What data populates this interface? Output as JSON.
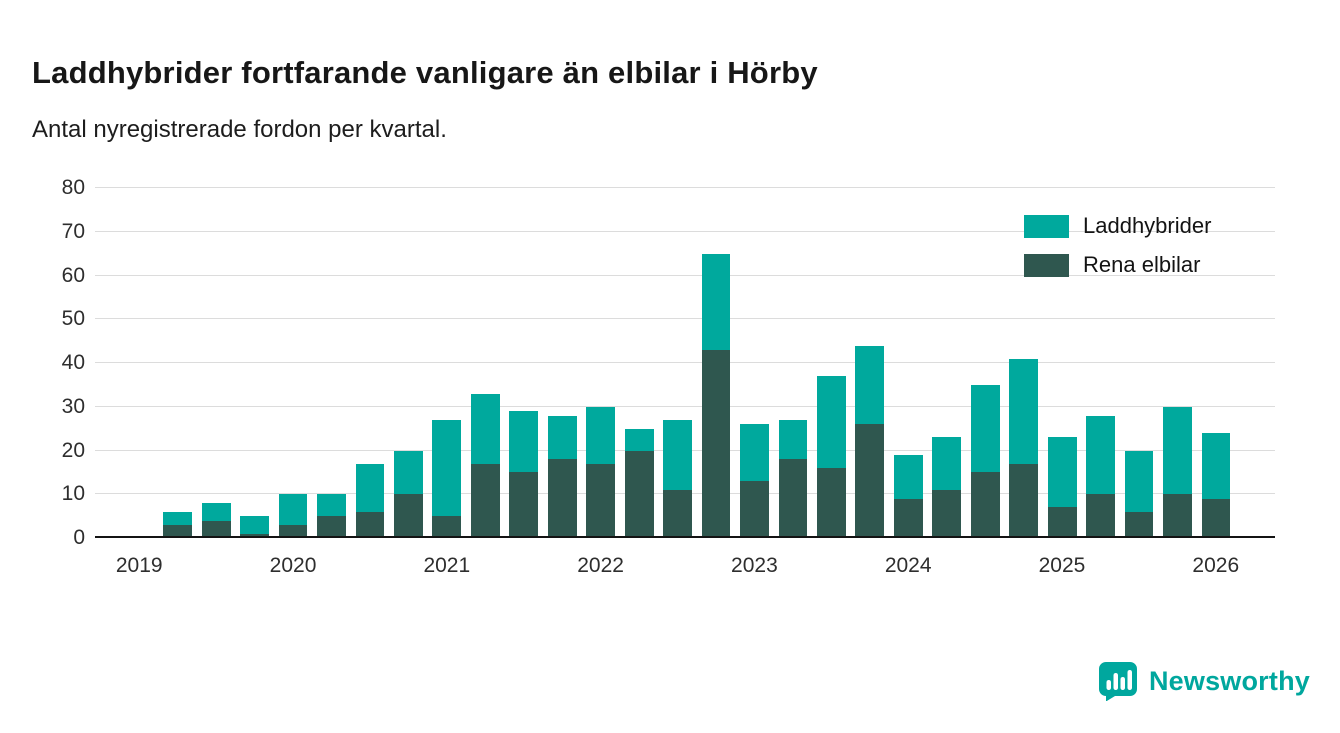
{
  "header": {
    "title": "Laddhybrider fortfarande vanligare än elbilar i Hörby",
    "subtitle": "Antal nyregistrerade fordon per kvartal."
  },
  "chart_data": {
    "type": "bar",
    "stacked": true,
    "title": "Laddhybrider fortfarande vanligare än elbilar i Hörby",
    "subtitle": "Antal nyregistrerade fordon per kvartal.",
    "xlabel": "",
    "ylabel": "",
    "ylim": [
      0,
      80
    ],
    "yticks": [
      0,
      10,
      20,
      30,
      40,
      50,
      60,
      70,
      80
    ],
    "grid": true,
    "legend_position": "top-right",
    "x": [
      "2019 Q1",
      "2019 Q2",
      "2019 Q3",
      "2019 Q4",
      "2020 Q1",
      "2020 Q2",
      "2020 Q3",
      "2020 Q4",
      "2021 Q1",
      "2021 Q2",
      "2021 Q3",
      "2021 Q4",
      "2022 Q1",
      "2022 Q2",
      "2022 Q3",
      "2022 Q4",
      "2023 Q1",
      "2023 Q2",
      "2023 Q3",
      "2023 Q4",
      "2024 Q1",
      "2024 Q2",
      "2024 Q3",
      "2024 Q4",
      "2025 Q1",
      "2025 Q2",
      "2025 Q3",
      "2025 Q4",
      "2026 Q1"
    ],
    "series": [
      {
        "name": "Laddhybrider",
        "color": "#00a99d",
        "values": [
          0,
          3,
          4,
          4,
          7,
          5,
          11,
          10,
          22,
          16,
          14,
          10,
          13,
          5,
          16,
          22,
          13,
          9,
          21,
          18,
          10,
          12,
          20,
          24,
          16,
          18,
          14,
          20,
          15
        ]
      },
      {
        "name": "Rena elbilar",
        "color": "#2f574f",
        "values": [
          0,
          3,
          4,
          1,
          3,
          5,
          6,
          10,
          5,
          17,
          15,
          18,
          17,
          20,
          11,
          43,
          13,
          18,
          16,
          26,
          9,
          11,
          15,
          17,
          7,
          10,
          6,
          10,
          9
        ]
      }
    ],
    "totals": [
      0,
      6,
      8,
      5,
      10,
      10,
      17,
      20,
      27,
      33,
      29,
      28,
      30,
      25,
      27,
      65,
      26,
      27,
      37,
      44,
      19,
      23,
      35,
      41,
      23,
      28,
      20,
      30,
      24
    ],
    "year_labels": [
      {
        "label": "2019",
        "slot": 0
      },
      {
        "label": "2020",
        "slot": 4
      },
      {
        "label": "2021",
        "slot": 8
      },
      {
        "label": "2022",
        "slot": 12
      },
      {
        "label": "2023",
        "slot": 16
      },
      {
        "label": "2024",
        "slot": 20
      },
      {
        "label": "2025",
        "slot": 24
      },
      {
        "label": "2026",
        "slot": 28
      }
    ]
  },
  "colors": {
    "brand": "#00a79e",
    "laddhybrider": "#00a99d",
    "rena_elbilar": "#2f574f",
    "gridline": "#dcdcdc",
    "axis": "#141414"
  },
  "footer": {
    "brand": "Newsworthy"
  }
}
